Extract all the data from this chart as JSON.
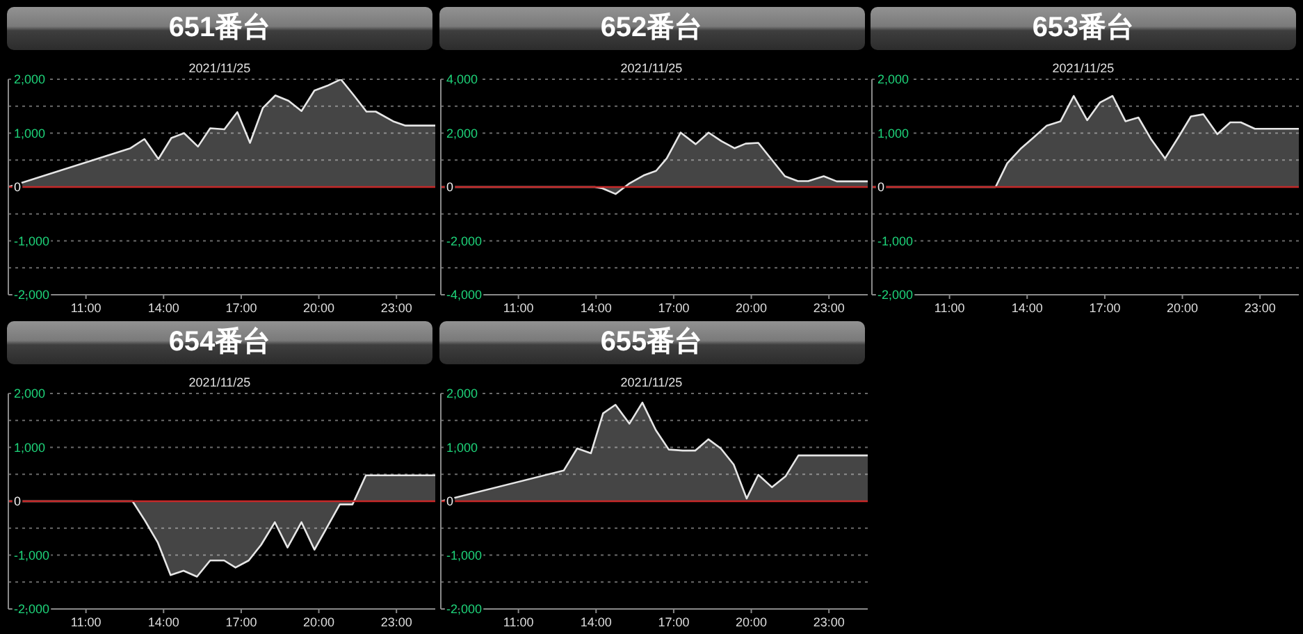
{
  "chart_data": [
    {
      "type": "area",
      "title": "651番台",
      "subtitle": "2021/11/25",
      "color": "#e6e6e6",
      "grid": "y",
      "x": [
        8,
        12.72,
        13.26,
        13.8,
        14.3,
        14.79,
        15.33,
        15.8,
        16.35,
        16.85,
        17.34,
        17.84,
        18.32,
        18.83,
        19.33,
        19.83,
        20.33,
        20.85,
        21.34,
        21.84,
        22.2,
        22.87,
        23.35,
        24.5
      ],
      "values": [
        0,
        720,
        890,
        520,
        910,
        1000,
        750,
        1090,
        1070,
        1390,
        820,
        1470,
        1700,
        1600,
        1410,
        1790,
        1880,
        2000,
        1710,
        1400,
        1400,
        1220,
        1140,
        1140
      ],
      "xlim": [
        8,
        24.5
      ],
      "xticks": [
        {
          "value": 11,
          "label": "11:00"
        },
        {
          "value": 14,
          "label": "14:00"
        },
        {
          "value": 17,
          "label": "17:00"
        },
        {
          "value": 20,
          "label": "20:00"
        },
        {
          "value": 23,
          "label": "23:00"
        }
      ],
      "ylim": [
        -2000,
        2000
      ],
      "yticks": [
        {
          "value": 2000,
          "label": "2,000"
        },
        {
          "value": 1500,
          "label": null
        },
        {
          "value": 1000,
          "label": "1,000"
        },
        {
          "value": 500,
          "label": null
        },
        {
          "value": 0,
          "label": "0"
        },
        {
          "value": -500,
          "label": null
        },
        {
          "value": -1000,
          "label": "-1,000"
        },
        {
          "value": -1500,
          "label": null
        },
        {
          "value": -2000,
          "label": "-2,000"
        }
      ],
      "ref_lines": [
        {
          "axis": "y",
          "value": 0,
          "color": "#c62828"
        }
      ]
    },
    {
      "type": "area",
      "title": "652番台",
      "subtitle": "2021/11/25",
      "color": "#e6e6e6",
      "grid": "y",
      "x": [
        8,
        13.95,
        14.25,
        14.76,
        15.3,
        15.84,
        16.32,
        16.73,
        17.27,
        17.85,
        18.35,
        18.85,
        19.35,
        19.78,
        20.27,
        20.77,
        21.3,
        21.8,
        22.2,
        22.8,
        23.3,
        24.5
      ],
      "values": [
        0,
        0,
        -50,
        -260,
        140,
        430,
        600,
        1060,
        2020,
        1590,
        2020,
        1700,
        1440,
        1610,
        1640,
        1040,
        400,
        220,
        220,
        400,
        210,
        210
      ],
      "xlim": [
        8,
        24.5
      ],
      "xticks": [
        {
          "value": 11,
          "label": "11:00"
        },
        {
          "value": 14,
          "label": "14:00"
        },
        {
          "value": 17,
          "label": "17:00"
        },
        {
          "value": 20,
          "label": "20:00"
        },
        {
          "value": 23,
          "label": "23:00"
        }
      ],
      "ylim": [
        -4000,
        4000
      ],
      "yticks": [
        {
          "value": 4000,
          "label": "4,000"
        },
        {
          "value": 3000,
          "label": null
        },
        {
          "value": 2000,
          "label": "2,000"
        },
        {
          "value": 1000,
          "label": null
        },
        {
          "value": 0,
          "label": "0"
        },
        {
          "value": -1000,
          "label": null
        },
        {
          "value": -2000,
          "label": "-2,000"
        },
        {
          "value": -3000,
          "label": null
        },
        {
          "value": -4000,
          "label": "-4,000"
        }
      ],
      "ref_lines": [
        {
          "axis": "y",
          "value": 0,
          "color": "#c62828"
        }
      ]
    },
    {
      "type": "area",
      "title": "653番台",
      "subtitle": "2021/11/25",
      "color": "#e6e6e6",
      "grid": "y",
      "x": [
        8,
        12.78,
        13.23,
        13.77,
        14.25,
        14.76,
        15.29,
        15.8,
        16.32,
        16.82,
        17.3,
        17.8,
        18.3,
        18.8,
        19.33,
        19.84,
        20.33,
        20.81,
        21.35,
        21.85,
        22.26,
        22.8,
        24.5
      ],
      "values": [
        0,
        0,
        440,
        720,
        920,
        1140,
        1220,
        1690,
        1240,
        1570,
        1690,
        1220,
        1290,
        880,
        530,
        920,
        1310,
        1350,
        980,
        1200,
        1200,
        1080,
        1080
      ],
      "xlim": [
        8,
        24.5
      ],
      "xticks": [
        {
          "value": 11,
          "label": "11:00"
        },
        {
          "value": 14,
          "label": "14:00"
        },
        {
          "value": 17,
          "label": "17:00"
        },
        {
          "value": 20,
          "label": "20:00"
        },
        {
          "value": 23,
          "label": "23:00"
        }
      ],
      "ylim": [
        -2000,
        2000
      ],
      "yticks": [
        {
          "value": 2000,
          "label": "2,000"
        },
        {
          "value": 1500,
          "label": null
        },
        {
          "value": 1000,
          "label": "1,000"
        },
        {
          "value": 500,
          "label": null
        },
        {
          "value": 0,
          "label": "0"
        },
        {
          "value": -500,
          "label": null
        },
        {
          "value": -1000,
          "label": "-1,000"
        },
        {
          "value": -1500,
          "label": null
        },
        {
          "value": -2000,
          "label": "-2,000"
        }
      ],
      "ref_lines": [
        {
          "axis": "y",
          "value": 0,
          "color": "#c62828"
        }
      ]
    },
    {
      "type": "area",
      "title": "654番台",
      "subtitle": "2021/11/25",
      "color": "#e6e6e6",
      "grid": "y",
      "x": [
        8,
        12.8,
        13.28,
        13.78,
        14.27,
        14.77,
        15.29,
        15.8,
        16.34,
        16.78,
        17.29,
        17.77,
        18.3,
        18.79,
        19.33,
        19.83,
        20.31,
        20.81,
        21.3,
        21.82,
        24.5
      ],
      "values": [
        0,
        0,
        -360,
        -770,
        -1370,
        -1290,
        -1400,
        -1100,
        -1100,
        -1230,
        -1100,
        -810,
        -390,
        -860,
        -390,
        -900,
        -490,
        -60,
        -60,
        480,
        480
      ],
      "xlim": [
        8,
        24.5
      ],
      "xticks": [
        {
          "value": 11,
          "label": "11:00"
        },
        {
          "value": 14,
          "label": "14:00"
        },
        {
          "value": 17,
          "label": "17:00"
        },
        {
          "value": 20,
          "label": "20:00"
        },
        {
          "value": 23,
          "label": "23:00"
        }
      ],
      "ylim": [
        -2000,
        2000
      ],
      "yticks": [
        {
          "value": 2000,
          "label": "2,000"
        },
        {
          "value": 1500,
          "label": null
        },
        {
          "value": 1000,
          "label": "1,000"
        },
        {
          "value": 500,
          "label": null
        },
        {
          "value": 0,
          "label": "0"
        },
        {
          "value": -500,
          "label": null
        },
        {
          "value": -1000,
          "label": "-1,000"
        },
        {
          "value": -1500,
          "label": null
        },
        {
          "value": -2000,
          "label": "-2,000"
        }
      ],
      "ref_lines": [
        {
          "axis": "y",
          "value": 0,
          "color": "#c62828"
        }
      ]
    },
    {
      "type": "area",
      "title": "655番台",
      "subtitle": "2021/11/25",
      "color": "#e6e6e6",
      "grid": "y",
      "x": [
        8,
        12.75,
        13.27,
        13.8,
        14.27,
        14.75,
        15.29,
        15.79,
        16.31,
        16.81,
        17.35,
        17.83,
        18.34,
        18.82,
        19.32,
        19.82,
        20.27,
        20.8,
        21.32,
        21.82,
        24.5
      ],
      "values": [
        0,
        570,
        980,
        890,
        1630,
        1790,
        1440,
        1830,
        1320,
        960,
        940,
        940,
        1150,
        980,
        680,
        50,
        490,
        260,
        460,
        850,
        850
      ],
      "xlim": [
        8,
        24.5
      ],
      "xticks": [
        {
          "value": 11,
          "label": "11:00"
        },
        {
          "value": 14,
          "label": "14:00"
        },
        {
          "value": 17,
          "label": "17:00"
        },
        {
          "value": 20,
          "label": "20:00"
        },
        {
          "value": 23,
          "label": "23:00"
        }
      ],
      "ylim": [
        -2000,
        2000
      ],
      "yticks": [
        {
          "value": 2000,
          "label": "2,000"
        },
        {
          "value": 1500,
          "label": null
        },
        {
          "value": 1000,
          "label": "1,000"
        },
        {
          "value": 500,
          "label": null
        },
        {
          "value": 0,
          "label": "0"
        },
        {
          "value": -500,
          "label": null
        },
        {
          "value": -1000,
          "label": "-1,000"
        },
        {
          "value": -1500,
          "label": null
        },
        {
          "value": -2000,
          "label": "-2,000"
        }
      ],
      "ref_lines": [
        {
          "axis": "y",
          "value": 0,
          "color": "#c62828"
        }
      ]
    }
  ]
}
